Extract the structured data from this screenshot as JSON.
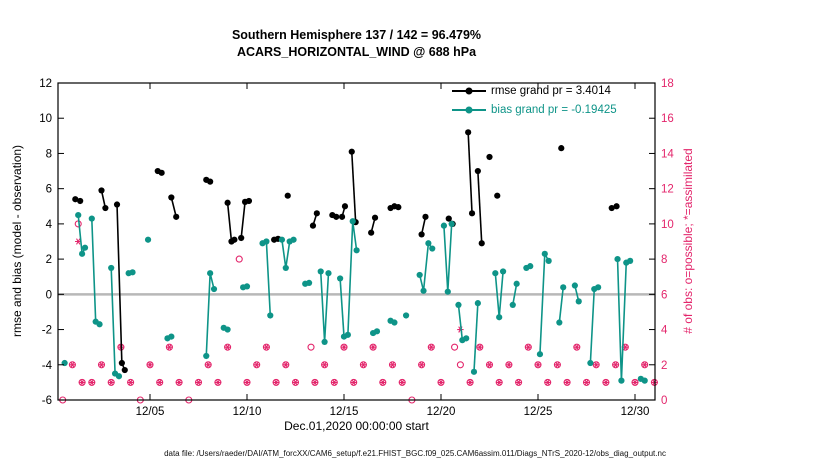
{
  "title": {
    "line1": "Southern Hemisphere 137 / 142 = 96.479%",
    "line2": "ACARS_HORIZONTAL_WIND @ 688 hPa"
  },
  "axes": {
    "ylabel_left": "rmse and bias (model - observation)",
    "ylabel_right": "# of obs: o=possible; *=assimilated",
    "xlabel": "Dec.01,2020 00:00:00 start",
    "x_ticks": [
      {
        "day": 4,
        "label": "12/05"
      },
      {
        "day": 9,
        "label": "12/10"
      },
      {
        "day": 14,
        "label": "12/15"
      },
      {
        "day": 19,
        "label": "12/20"
      },
      {
        "day": 24,
        "label": "12/25"
      },
      {
        "day": 29,
        "label": "12/30"
      }
    ],
    "y_ticks_left": [
      -6,
      -4,
      -2,
      0,
      2,
      4,
      6,
      8,
      10,
      12
    ],
    "y_ticks_right": [
      0,
      2,
      4,
      6,
      8,
      10,
      12,
      14,
      16,
      18
    ]
  },
  "legend": [
    {
      "label": "rmse grand pr = 3.4014",
      "color": "#000000"
    },
    {
      "label": "bias grand pr = -0.19425",
      "color": "#0e9488"
    }
  ],
  "caption": "data file: /Users/raeder/DAI/ATM_forcXX/CAM6_setup/f.e21.FHIST_BGC.f09_025.CAM6assim.011/Diags_NTrS_2020-12/obs_diag_output.nc",
  "colors": {
    "rmse": "#000000",
    "bias": "#0e9488",
    "obs": "#e3256b",
    "zero_line": "#b8b8b8",
    "axis": "#000000"
  },
  "chart_data": {
    "type": "line",
    "x_unit": "days since Dec.01,2020 00:00:00",
    "xlim": [
      -0.74,
      30.03
    ],
    "ylim_left": [
      -6,
      12
    ],
    "ylim_right": [
      0,
      18
    ],
    "zero_line": true,
    "series": [
      {
        "name": "rmse",
        "grand_mean": 3.4014,
        "color": "#000000",
        "segments": [
          [
            [
              0.15,
              5.4
            ],
            [
              0.4,
              5.3
            ]
          ],
          [
            [
              1.5,
              5.9
            ],
            [
              1.7,
              4.9
            ]
          ],
          [
            [
              2.3,
              5.1
            ],
            [
              2.55,
              -3.9
            ],
            [
              2.7,
              -4.3
            ]
          ],
          [
            [
              4.4,
              7.0
            ],
            [
              4.6,
              6.9
            ]
          ],
          [
            [
              5.1,
              5.5
            ],
            [
              5.35,
              4.4
            ]
          ],
          [
            [
              6.9,
              6.5
            ],
            [
              7.1,
              6.4
            ]
          ],
          [
            [
              8.0,
              5.2
            ],
            [
              8.2,
              3.0
            ],
            [
              8.35,
              3.1
            ]
          ],
          [
            [
              8.7,
              3.2
            ],
            [
              8.9,
              5.25
            ],
            [
              9.1,
              5.3
            ]
          ],
          [
            [
              10.4,
              3.1
            ],
            [
              10.6,
              3.15
            ]
          ],
          [
            [
              11.1,
              5.6
            ]
          ],
          [
            [
              12.4,
              3.9
            ],
            [
              12.6,
              4.6
            ]
          ],
          [
            [
              13.4,
              4.5
            ],
            [
              13.6,
              4.4
            ]
          ],
          [
            [
              13.9,
              4.4
            ],
            [
              14.05,
              5.0
            ]
          ],
          [
            [
              14.4,
              8.1
            ],
            [
              14.6,
              4.1
            ]
          ],
          [
            [
              15.4,
              3.5
            ],
            [
              15.6,
              4.35
            ]
          ],
          [
            [
              16.4,
              4.9
            ],
            [
              16.6,
              5.0
            ],
            [
              16.8,
              4.95
            ]
          ],
          [
            [
              18.0,
              3.4
            ],
            [
              18.2,
              4.4
            ]
          ],
          [
            [
              19.4,
              4.3
            ],
            [
              19.6,
              4.0
            ]
          ],
          [
            [
              20.4,
              9.2
            ],
            [
              20.6,
              4.6
            ]
          ],
          [
            [
              20.9,
              7.0
            ],
            [
              21.1,
              2.9
            ]
          ],
          [
            [
              21.5,
              7.8
            ]
          ],
          [
            [
              21.9,
              5.6
            ]
          ],
          [
            [
              25.2,
              8.3
            ]
          ],
          [
            [
              27.8,
              4.9
            ],
            [
              28.05,
              5.0
            ]
          ]
        ]
      },
      {
        "name": "bias",
        "grand_mean": -0.19425,
        "color": "#0e9488",
        "segments": [
          [
            [
              -0.4,
              -3.9
            ]
          ],
          [
            [
              0.3,
              4.5
            ],
            [
              0.5,
              2.3
            ],
            [
              0.65,
              2.65
            ]
          ],
          [
            [
              1.0,
              4.3
            ],
            [
              1.2,
              -1.55
            ],
            [
              1.4,
              -1.7
            ]
          ],
          [
            [
              2.0,
              1.5
            ],
            [
              2.2,
              -4.5
            ],
            [
              2.4,
              -4.65
            ]
          ],
          [
            [
              2.9,
              1.2
            ],
            [
              3.1,
              1.25
            ]
          ],
          [
            [
              3.9,
              3.1
            ]
          ],
          [
            [
              4.9,
              -2.5
            ],
            [
              5.1,
              -2.4
            ]
          ],
          [
            [
              6.9,
              -3.5
            ],
            [
              7.1,
              1.2
            ],
            [
              7.3,
              0.3
            ]
          ],
          [
            [
              7.8,
              -1.9
            ],
            [
              8.0,
              -2.0
            ]
          ],
          [
            [
              8.8,
              0.4
            ],
            [
              9.0,
              0.45
            ]
          ],
          [
            [
              9.8,
              2.9
            ],
            [
              10.0,
              3.0
            ],
            [
              10.2,
              -1.2
            ]
          ],
          [
            [
              10.8,
              3.1
            ],
            [
              11.0,
              1.5
            ],
            [
              11.2,
              3.0
            ],
            [
              11.4,
              3.1
            ]
          ],
          [
            [
              12.0,
              0.6
            ],
            [
              12.2,
              0.65
            ]
          ],
          [
            [
              12.8,
              1.3
            ],
            [
              13.0,
              -2.7
            ],
            [
              13.2,
              1.2
            ]
          ],
          [
            [
              13.8,
              0.9
            ],
            [
              14.0,
              -2.4
            ]
          ],
          [
            [
              14.2,
              -2.3
            ],
            [
              14.45,
              4.15
            ],
            [
              14.65,
              2.5
            ]
          ],
          [
            [
              15.5,
              -2.2
            ],
            [
              15.7,
              -2.1
            ]
          ],
          [
            [
              16.4,
              -1.5
            ],
            [
              16.6,
              -1.6
            ]
          ],
          [
            [
              17.2,
              -1.2
            ]
          ],
          [
            [
              17.9,
              1.1
            ],
            [
              18.1,
              0.2
            ],
            [
              18.35,
              2.9
            ],
            [
              18.55,
              2.6
            ]
          ],
          [
            [
              19.15,
              3.9
            ],
            [
              19.35,
              0.15
            ],
            [
              19.55,
              4.0
            ]
          ],
          [
            [
              19.9,
              -0.6
            ],
            [
              20.1,
              -2.6
            ],
            [
              20.3,
              -2.5
            ]
          ],
          [
            [
              20.7,
              -4.4
            ],
            [
              20.9,
              -0.5
            ]
          ],
          [
            [
              21.8,
              1.2
            ],
            [
              22.0,
              -1.3
            ],
            [
              22.2,
              1.3
            ]
          ],
          [
            [
              22.7,
              -0.6
            ],
            [
              22.9,
              0.6
            ]
          ],
          [
            [
              23.4,
              1.5
            ],
            [
              23.6,
              1.6
            ]
          ],
          [
            [
              24.1,
              -3.4
            ],
            [
              24.35,
              2.3
            ],
            [
              24.55,
              1.9
            ]
          ],
          [
            [
              25.1,
              -1.6
            ],
            [
              25.3,
              0.4
            ]
          ],
          [
            [
              25.9,
              0.5
            ],
            [
              26.1,
              -0.4
            ]
          ],
          [
            [
              26.7,
              -3.9
            ],
            [
              26.9,
              0.3
            ],
            [
              27.1,
              0.4
            ]
          ],
          [
            [
              28.1,
              2.0
            ],
            [
              28.3,
              -4.9
            ],
            [
              28.55,
              1.8
            ],
            [
              28.75,
              1.9
            ]
          ],
          [
            [
              29.3,
              -4.8
            ],
            [
              29.5,
              -4.9
            ]
          ]
        ]
      }
    ],
    "obs_counts": {
      "color": "#e3256b",
      "possible_marker": "o",
      "assimilated_marker": "*",
      "possible": [
        [
          -0.5,
          0
        ],
        [
          0.0,
          2
        ],
        [
          0.3,
          10
        ],
        [
          0.5,
          1
        ],
        [
          1.0,
          1
        ],
        [
          1.5,
          2
        ],
        [
          2.0,
          1
        ],
        [
          2.5,
          3
        ],
        [
          3.0,
          1
        ],
        [
          3.5,
          0
        ],
        [
          4.0,
          2
        ],
        [
          4.5,
          1
        ],
        [
          5.0,
          3
        ],
        [
          5.5,
          1
        ],
        [
          6.0,
          0
        ],
        [
          6.5,
          1
        ],
        [
          7.0,
          2
        ],
        [
          7.5,
          1
        ],
        [
          8.0,
          3
        ],
        [
          8.6,
          8
        ],
        [
          9.0,
          1
        ],
        [
          9.5,
          2
        ],
        [
          10.0,
          3
        ],
        [
          10.5,
          1
        ],
        [
          11.0,
          2
        ],
        [
          11.5,
          1
        ],
        [
          12.3,
          3
        ],
        [
          12.5,
          1
        ],
        [
          13.0,
          2
        ],
        [
          13.5,
          1
        ],
        [
          14.0,
          3
        ],
        [
          14.5,
          1
        ],
        [
          15.0,
          2
        ],
        [
          15.5,
          3
        ],
        [
          16.0,
          1
        ],
        [
          16.5,
          2
        ],
        [
          17.0,
          1
        ],
        [
          17.5,
          0
        ],
        [
          18.0,
          2
        ],
        [
          18.5,
          3
        ],
        [
          19.0,
          1
        ],
        [
          19.7,
          3
        ],
        [
          20.0,
          2
        ],
        [
          20.5,
          1
        ],
        [
          21.0,
          3
        ],
        [
          21.5,
          2
        ],
        [
          22.0,
          1
        ],
        [
          22.5,
          2
        ],
        [
          23.0,
          1
        ],
        [
          23.5,
          3
        ],
        [
          24.0,
          2
        ],
        [
          24.5,
          1
        ],
        [
          25.0,
          2
        ],
        [
          25.5,
          1
        ],
        [
          26.0,
          3
        ],
        [
          26.5,
          1
        ],
        [
          27.0,
          2
        ],
        [
          27.5,
          1
        ],
        [
          28.0,
          2
        ],
        [
          28.5,
          3
        ],
        [
          29.0,
          1
        ],
        [
          29.5,
          2
        ],
        [
          30.0,
          1
        ]
      ],
      "assimilated": [
        [
          0.0,
          2
        ],
        [
          0.3,
          9
        ],
        [
          0.5,
          1
        ],
        [
          1.0,
          1
        ],
        [
          1.5,
          2
        ],
        [
          2.0,
          1
        ],
        [
          2.5,
          3
        ],
        [
          3.0,
          1
        ],
        [
          4.0,
          2
        ],
        [
          4.5,
          1
        ],
        [
          5.0,
          3
        ],
        [
          5.5,
          1
        ],
        [
          6.5,
          1
        ],
        [
          7.0,
          2
        ],
        [
          7.5,
          1
        ],
        [
          8.0,
          3
        ],
        [
          9.0,
          1
        ],
        [
          9.5,
          2
        ],
        [
          10.0,
          3
        ],
        [
          10.5,
          1
        ],
        [
          11.0,
          2
        ],
        [
          11.5,
          1
        ],
        [
          12.5,
          1
        ],
        [
          13.0,
          2
        ],
        [
          13.5,
          1
        ],
        [
          14.0,
          3
        ],
        [
          14.5,
          1
        ],
        [
          15.0,
          2
        ],
        [
          15.5,
          3
        ],
        [
          16.0,
          1
        ],
        [
          16.5,
          2
        ],
        [
          17.0,
          1
        ],
        [
          18.0,
          2
        ],
        [
          18.5,
          3
        ],
        [
          19.0,
          1
        ],
        [
          20.0,
          4
        ],
        [
          20.5,
          1
        ],
        [
          21.0,
          3
        ],
        [
          21.5,
          2
        ],
        [
          22.0,
          1
        ],
        [
          22.5,
          2
        ],
        [
          23.0,
          1
        ],
        [
          23.5,
          3
        ],
        [
          24.0,
          2
        ],
        [
          24.5,
          1
        ],
        [
          25.0,
          2
        ],
        [
          25.5,
          1
        ],
        [
          26.0,
          3
        ],
        [
          26.5,
          1
        ],
        [
          27.0,
          2
        ],
        [
          27.5,
          1
        ],
        [
          28.0,
          2
        ],
        [
          28.5,
          3
        ],
        [
          29.0,
          1
        ],
        [
          29.5,
          2
        ],
        [
          30.0,
          1
        ]
      ]
    }
  }
}
